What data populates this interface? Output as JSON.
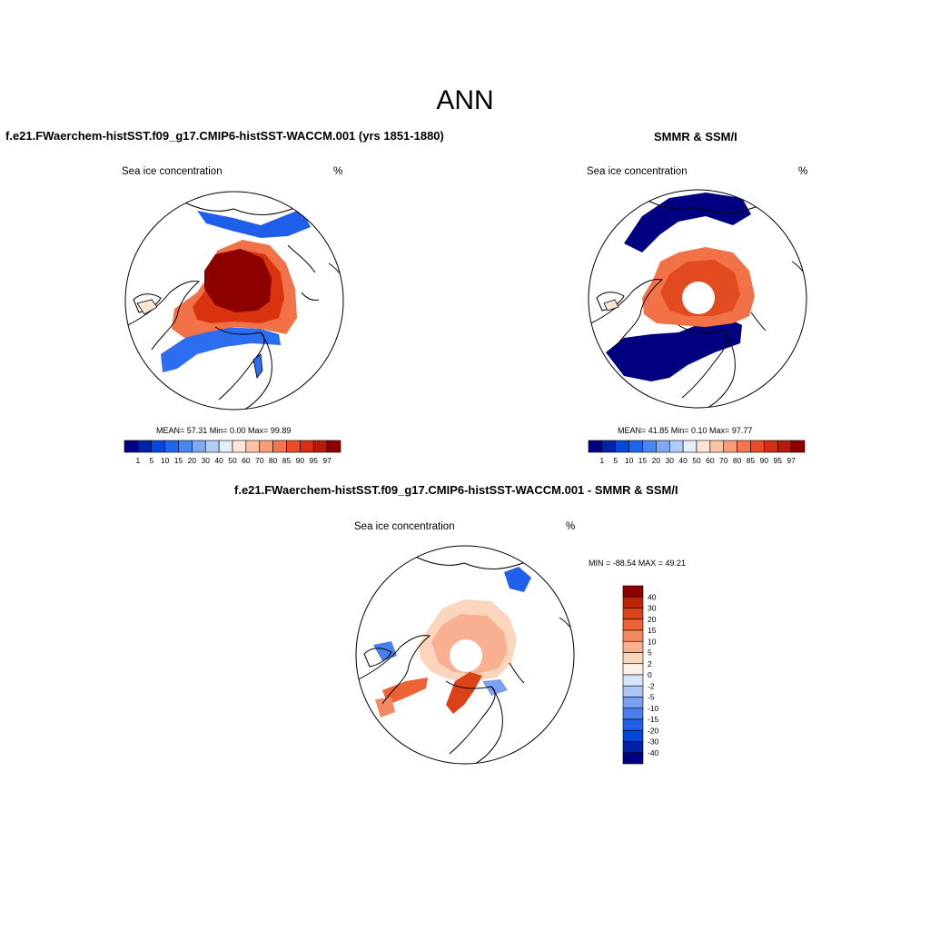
{
  "title": "ANN",
  "palettes": {
    "absolute": [
      "#000080",
      "#0022a8",
      "#0448dd",
      "#1f66ee",
      "#4a86f0",
      "#7ea8f2",
      "#b2cdf5",
      "#e4eefa",
      "#fde6d6",
      "#fcc3a5",
      "#fb9d78",
      "#f5764e",
      "#ea4c25",
      "#d52e12",
      "#b71a08",
      "#8c0000"
    ],
    "difference": [
      "#000080",
      "#0022a8",
      "#0646d6",
      "#2060ea",
      "#4b7fee",
      "#7aa1f1",
      "#abc6f4",
      "#d6e6f8",
      "#fdf1e6",
      "#fbd6bd",
      "#f8b090",
      "#f48a62",
      "#ec6234",
      "#dc4218",
      "#bd250b",
      "#8c0000"
    ]
  },
  "panels": [
    {
      "id": "model",
      "title": "f.e21.FWaerchem-histSST.f09_g17.CMIP6-histSST-WACCM.001 (yrs 1851-1880)",
      "left_label": "Sea ice concentration",
      "right_label": "%",
      "stats": "MEAN=  57.31  Min=   0.00  Max=  99.89",
      "colorbar_ticks": [
        "1",
        "5",
        "10",
        "15",
        "20",
        "30",
        "40",
        "50",
        "60",
        "70",
        "80",
        "85",
        "90",
        "95",
        "97"
      ]
    },
    {
      "id": "obs",
      "title": "SMMR & SSM/I",
      "left_label": "Sea ice concentration",
      "right_label": "%",
      "stats": "MEAN=  41.85  Min=   0.10  Max=  97.77",
      "colorbar_ticks": [
        "1",
        "5",
        "10",
        "15",
        "20",
        "30",
        "40",
        "50",
        "60",
        "70",
        "80",
        "85",
        "90",
        "95",
        "97"
      ]
    },
    {
      "id": "diff",
      "title": "f.e21.FWaerchem-histSST.f09_g17.CMIP6-histSST-WACCM.001 - SMMR & SSM/I",
      "left_label": "Sea ice concentration",
      "right_label": "%",
      "stats": "MIN = -88.54 MAX =  49.21",
      "colorbar_ticks": [
        "40",
        "30",
        "20",
        "15",
        "10",
        "5",
        "2",
        "0",
        "-2",
        "-5",
        "-10",
        "-15",
        "-20",
        "-30",
        "-40"
      ]
    }
  ]
}
